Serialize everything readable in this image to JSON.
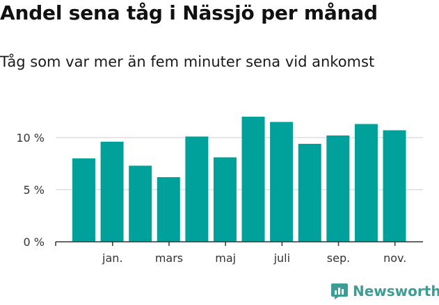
{
  "title": "Andel sena tåg i Nässjö per månad",
  "subtitle": "Tåg som var mer än fem minuter sena vid ankomst",
  "brand": {
    "name": "Newsworthy",
    "color": "#3a9d96",
    "icon": "newsworthy-logo-icon"
  },
  "chart_data": {
    "type": "bar",
    "title": "Andel sena tåg i Nässjö per månad",
    "subtitle": "Tåg som var mer än fem minuter sena vid ankomst",
    "xlabel": "",
    "ylabel": "",
    "ylim": [
      0,
      13
    ],
    "grid": true,
    "bar_color": "#00a19a",
    "y_ticks": [
      0,
      5,
      10
    ],
    "y_tick_labels": [
      "0 %",
      "5 %",
      "10 %"
    ],
    "x_tick_labels": [
      {
        "label": "jan.",
        "index": 1
      },
      {
        "label": "mars",
        "index": 3
      },
      {
        "label": "maj",
        "index": 5
      },
      {
        "label": "juli",
        "index": 7
      },
      {
        "label": "sep.",
        "index": 9
      },
      {
        "label": "nov.",
        "index": 11
      }
    ],
    "values": [
      8.0,
      9.6,
      7.3,
      6.2,
      10.1,
      8.1,
      12.0,
      11.5,
      9.4,
      10.2,
      11.3,
      10.7
    ]
  }
}
